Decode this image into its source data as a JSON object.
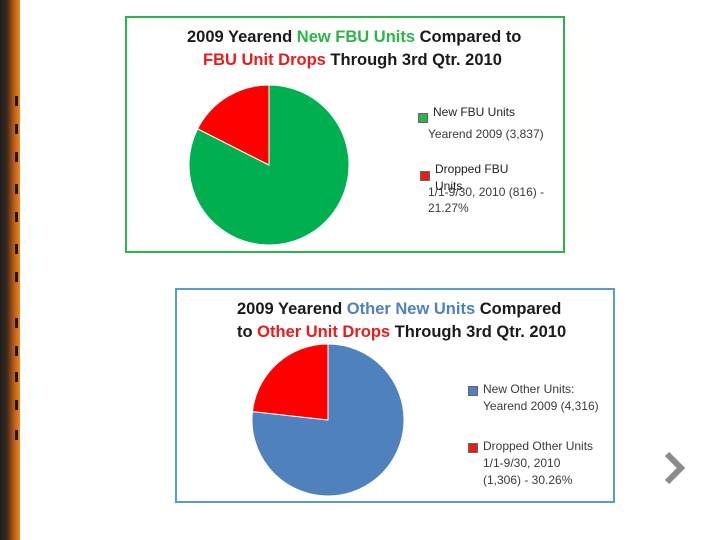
{
  "chart_data": [
    {
      "type": "pie",
      "title_parts": [
        {
          "text": "2009 Yearend ",
          "color": "#1a1a1a"
        },
        {
          "text": "New FBU Units",
          "color": "#2db34a"
        },
        {
          "text": " Compared to",
          "color": "#1a1a1a"
        }
      ],
      "title_parts_line2": [
        {
          "text": "FBU Unit Drops",
          "color": "#e81c1c"
        },
        {
          "text": " Through 3rd Qtr. 2010",
          "color": "#1a1a1a"
        }
      ],
      "slices": [
        {
          "label": "New FBU Units",
          "value": 3837,
          "color": "#00b050"
        },
        {
          "label": "Dropped FBU Units",
          "value": 816,
          "color": "#ff0000"
        }
      ],
      "legend": [
        {
          "lines": [
            "Yearend 2009 (3,837)"
          ],
          "overlay": "New FBU Units",
          "color": "#2db34a"
        },
        {
          "lines": [
            "1/1-9/30, 2010 (816) -",
            "21.27%"
          ],
          "overlay_lines": [
            "Dropped FBU",
            "Units"
          ],
          "color": "#e81c1c"
        }
      ]
    },
    {
      "type": "pie",
      "title_parts": [
        {
          "text": "2009 Yearend ",
          "color": "#1a1a1a"
        },
        {
          "text": "Other New Units",
          "color": "#4f81bd"
        },
        {
          "text": " Compared",
          "color": "#1a1a1a"
        }
      ],
      "title_parts_line2": [
        {
          "text": "to ",
          "color": "#1a1a1a"
        },
        {
          "text": "Other Unit Drops",
          "color": "#e81c1c"
        },
        {
          "text": " Through 3rd Qtr. 2010",
          "color": "#1a1a1a"
        }
      ],
      "slices": [
        {
          "label": "New Other Units",
          "value": 4316,
          "color": "#4f81bd"
        },
        {
          "label": "Dropped Other Units",
          "value": 1306,
          "color": "#ff0000"
        }
      ],
      "legend": [
        {
          "lines": [
            "New Other Units:",
            "Yearend 2009 (4,316)"
          ],
          "color": "#4f81bd"
        },
        {
          "lines": [
            "Dropped Other Units",
            "1/1-9/30, 2010",
            "(1,306) - 30.26%"
          ],
          "color": "#e81c1c"
        }
      ]
    }
  ],
  "navigation": {
    "next_icon": "chevron-right-icon"
  }
}
